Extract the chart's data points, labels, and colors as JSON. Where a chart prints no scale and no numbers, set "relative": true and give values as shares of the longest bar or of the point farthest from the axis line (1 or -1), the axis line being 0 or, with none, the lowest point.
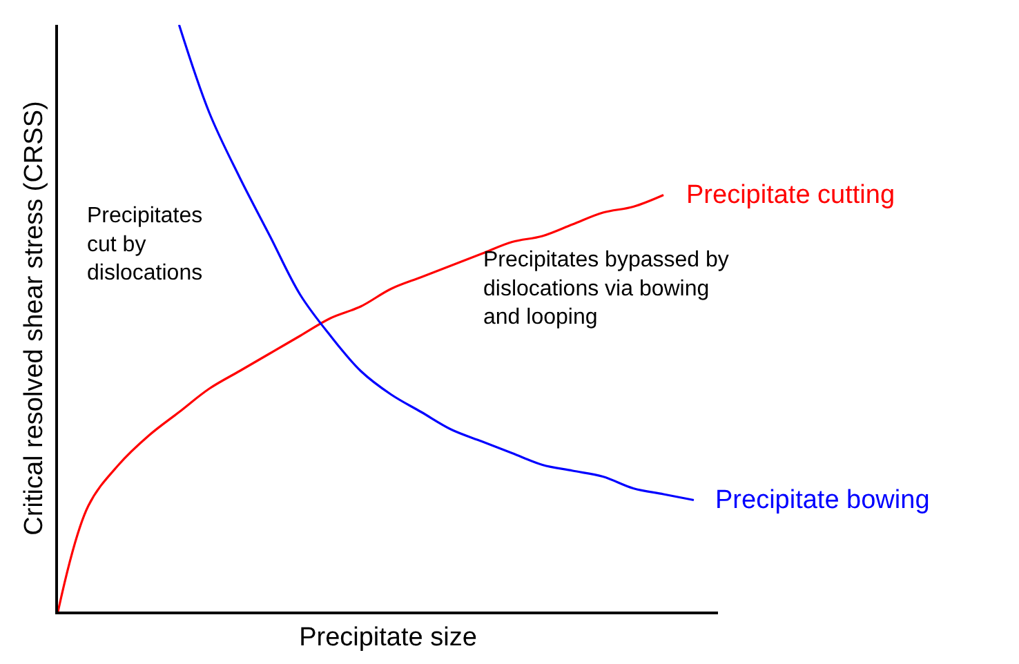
{
  "chart_data": {
    "type": "line",
    "relative": true,
    "xlabel": "Precipitate size",
    "ylabel": "Critical resolved shear stress (CRSS)",
    "categories": [
      null,
      null,
      null,
      null,
      null,
      null,
      null,
      null,
      null,
      null,
      null,
      null,
      null,
      null,
      null,
      null,
      null,
      null,
      null,
      null,
      null,
      null
    ],
    "series": [
      {
        "name": "Precipitate cutting",
        "color": "#ff0000",
        "values": [
          0,
          0.18,
          0.25,
          0.3,
          0.34,
          0.38,
          0.41,
          0.44,
          0.47,
          0.5,
          0.52,
          0.55,
          0.57,
          0.59,
          0.61,
          0.63,
          0.64,
          0.66,
          0.68,
          0.69,
          0.71,
          null
        ]
      },
      {
        "name": "Precipitate bowing",
        "color": "#0000ff",
        "values": [
          null,
          null,
          null,
          null,
          1.0,
          0.85,
          0.74,
          0.64,
          0.54,
          0.47,
          0.41,
          0.37,
          0.34,
          0.31,
          0.29,
          0.27,
          0.25,
          0.24,
          0.23,
          0.21,
          0.2,
          0.19
        ]
      }
    ],
    "annotations": [
      "Precipitates\ncut by\ndislocations",
      "Precipitates bypassed by\ndislocations via bowing\nand looping"
    ],
    "legend": false,
    "marker": "none",
    "line_style": "solid"
  }
}
